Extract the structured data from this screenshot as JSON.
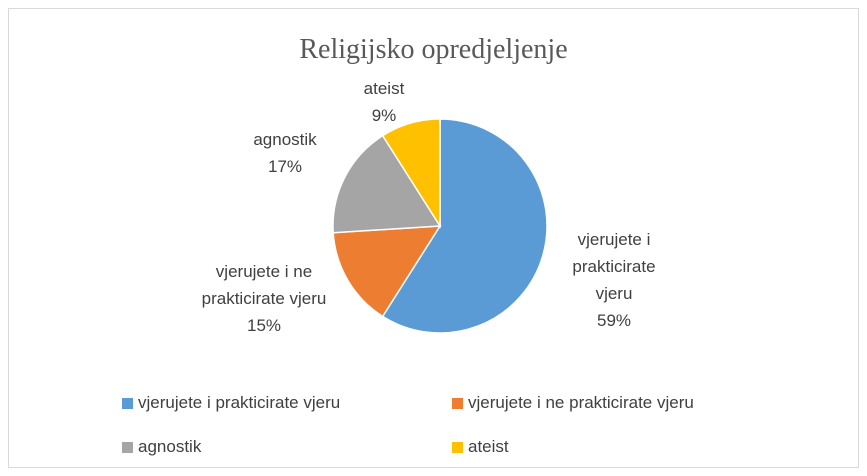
{
  "chart_data": {
    "type": "pie",
    "title": "Religijsko opredjeljenje",
    "categories": [
      "vjerujete i prakticirate vjeru",
      "vjerujete i ne prakticirate vjeru",
      "agnostik",
      "ateist"
    ],
    "values": [
      59,
      15,
      17,
      9
    ],
    "value_labels": [
      "59%",
      "15%",
      "17%",
      "9%"
    ],
    "colors": [
      "#5b9bd5",
      "#ed7d31",
      "#a5a5a5",
      "#ffc000"
    ],
    "legend": "bottom"
  }
}
